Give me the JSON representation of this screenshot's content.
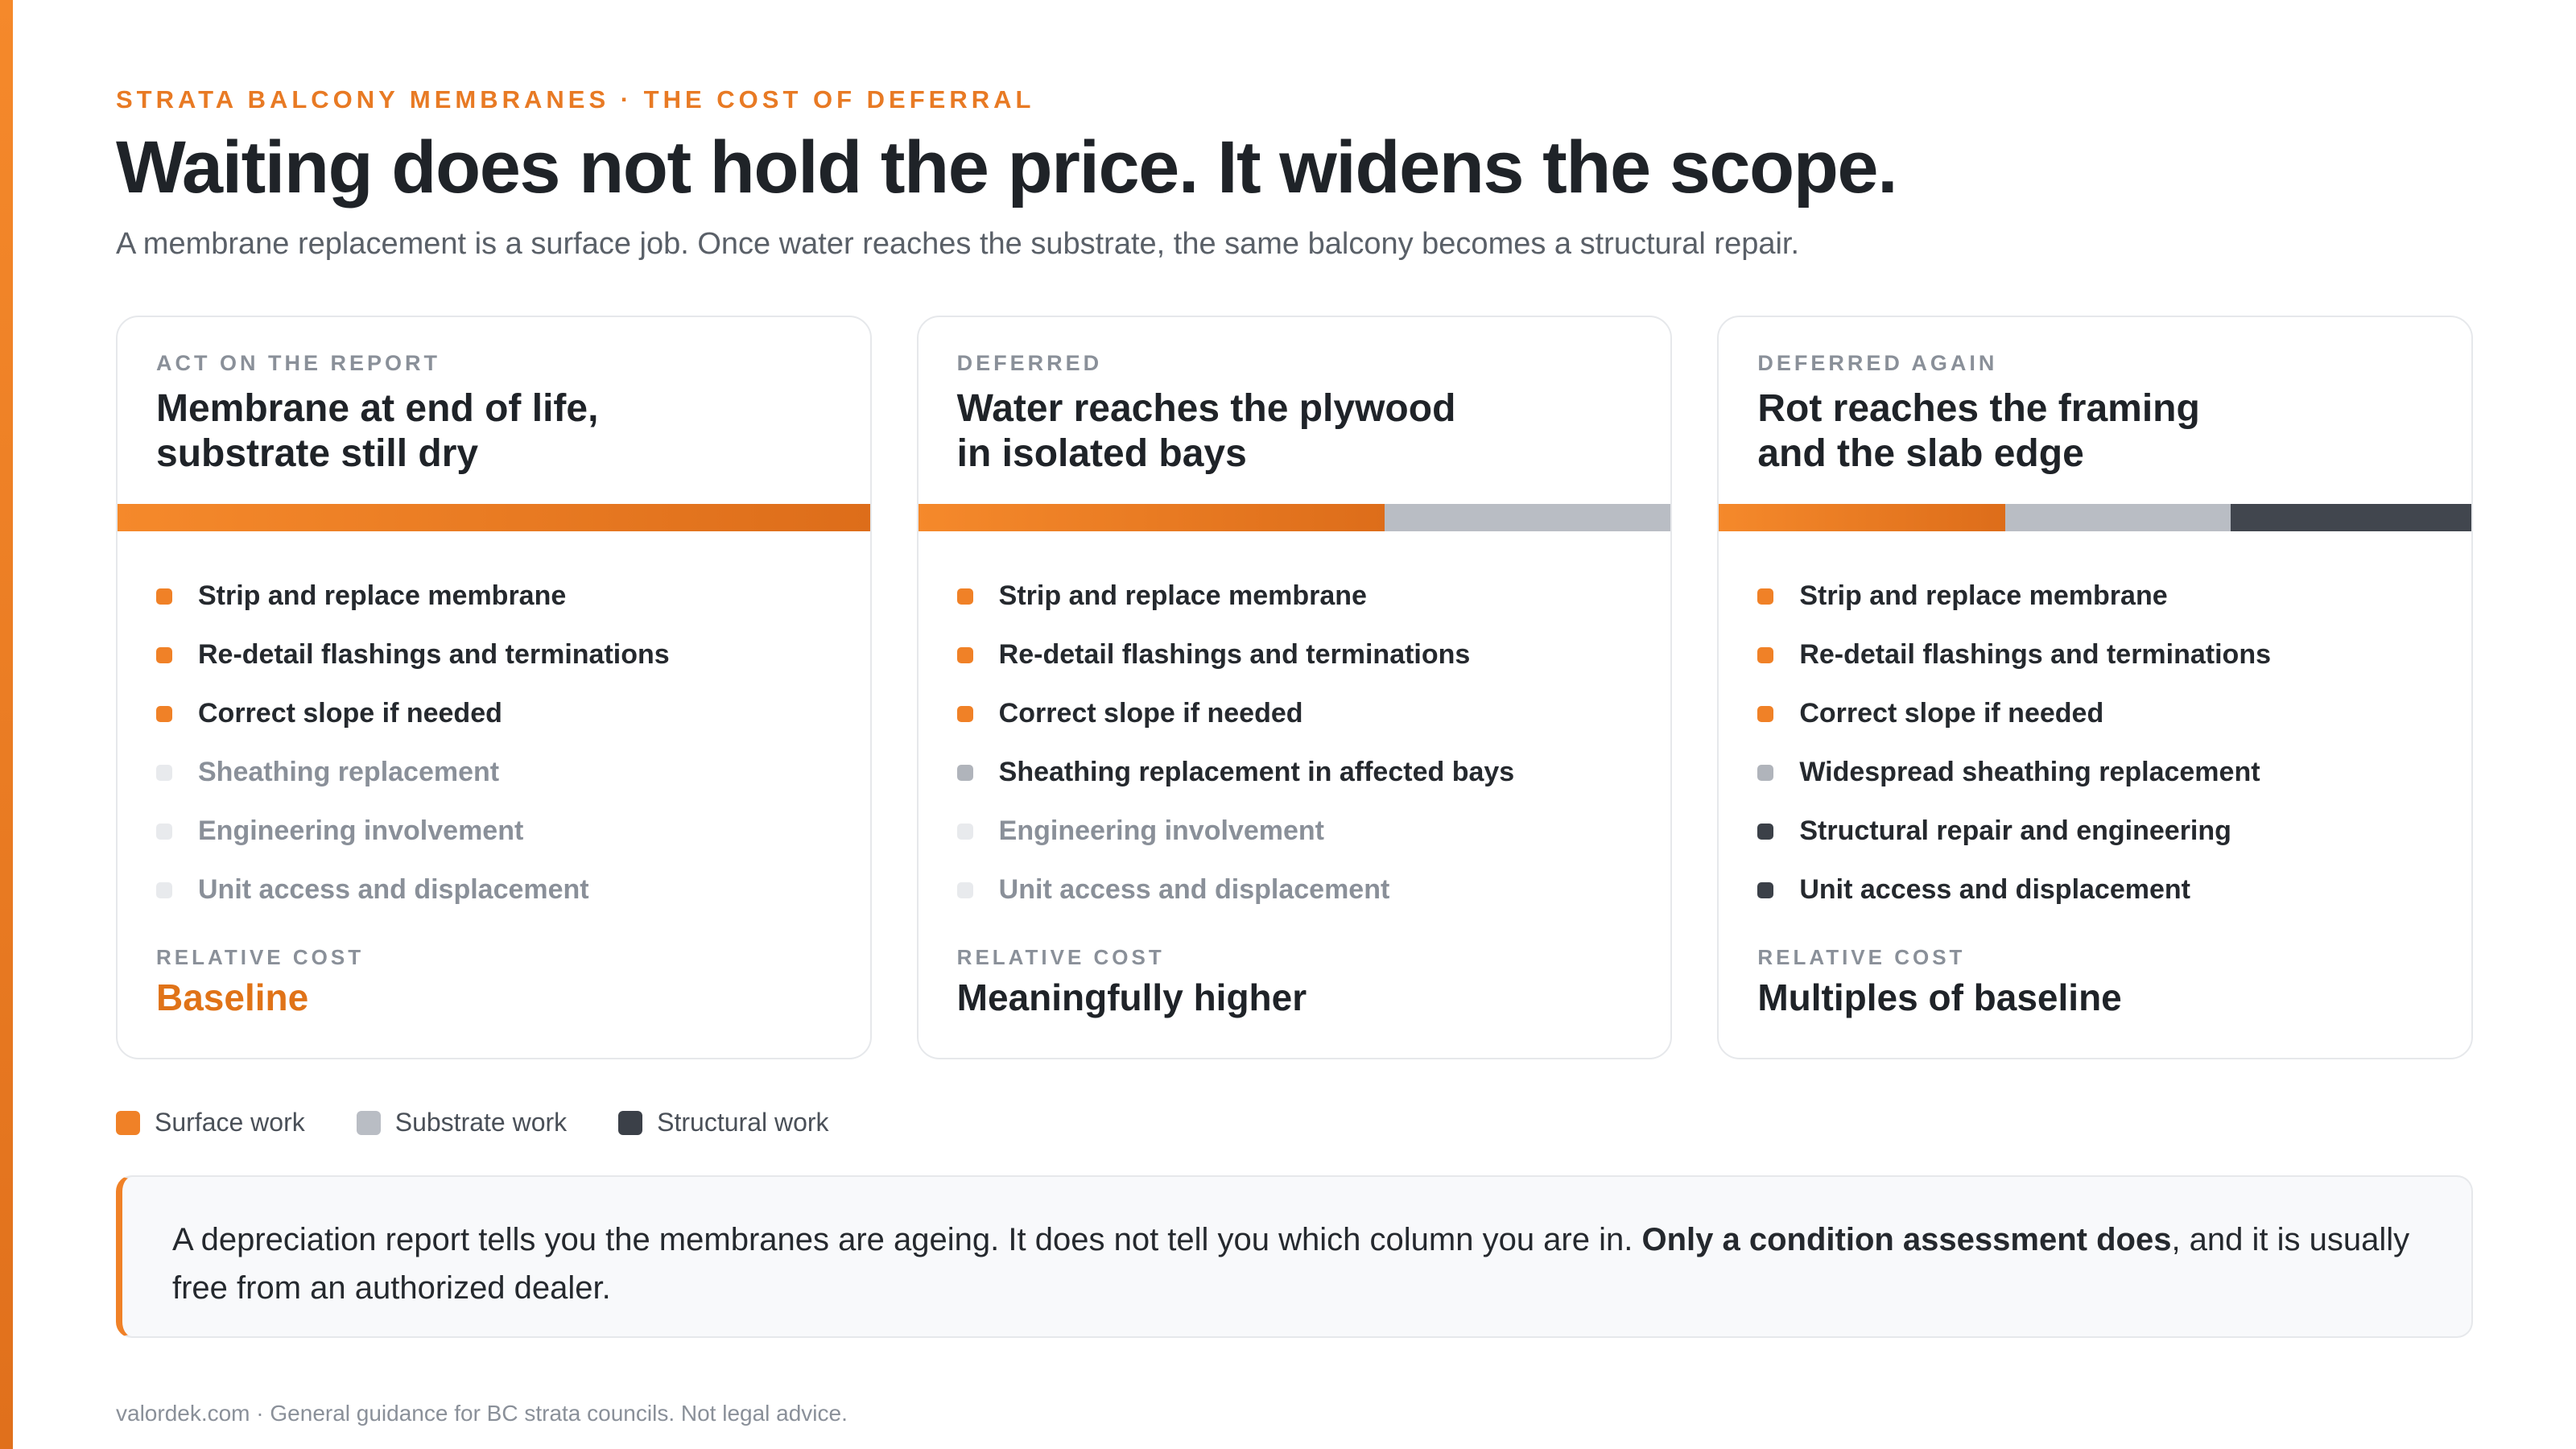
{
  "header": {
    "eyebrow": "STRATA BALCONY MEMBRANES · THE COST OF DEFERRAL",
    "title": "Waiting does not hold the price. It widens the scope.",
    "subtitle": "A membrane replacement is a surface job. Once water reaches the substrate, the same balcony becomes a structural repair."
  },
  "colors": {
    "accent": "#f08127",
    "surface": "#f08127",
    "substrate": "#b9bdc4",
    "structural": "#3b4048"
  },
  "cards": [
    {
      "tag": "ACT ON THE REPORT",
      "title_lines": [
        "Membrane at end of life,",
        "substrate still dry"
      ],
      "bar": {
        "surface": 1.0,
        "substrate": 0.0,
        "structural": 0.0
      },
      "items": [
        {
          "label": "Strip and replace membrane",
          "category": "surface",
          "active": true
        },
        {
          "label": "Re-detail flashings and terminations",
          "category": "surface",
          "active": true
        },
        {
          "label": "Correct slope if needed",
          "category": "surface",
          "active": true
        },
        {
          "label": "Sheathing replacement",
          "category": "substrate",
          "active": false
        },
        {
          "label": "Engineering involvement",
          "category": "structural",
          "active": false
        },
        {
          "label": "Unit access and displacement",
          "category": "structural",
          "active": false
        }
      ],
      "cost_label": "RELATIVE COST",
      "cost_value": "Baseline"
    },
    {
      "tag": "DEFERRED",
      "title_lines": [
        "Water reaches the plywood",
        "in isolated bays"
      ],
      "bar": {
        "surface": 0.62,
        "substrate": 0.38,
        "structural": 0.0
      },
      "items": [
        {
          "label": "Strip and replace membrane",
          "category": "surface",
          "active": true
        },
        {
          "label": "Re-detail flashings and terminations",
          "category": "surface",
          "active": true
        },
        {
          "label": "Correct slope if needed",
          "category": "surface",
          "active": true
        },
        {
          "label": "Sheathing replacement in affected bays",
          "category": "substrate",
          "active": true
        },
        {
          "label": "Engineering involvement",
          "category": "structural",
          "active": false
        },
        {
          "label": "Unit access and displacement",
          "category": "structural",
          "active": false
        }
      ],
      "cost_label": "RELATIVE COST",
      "cost_value": "Meaningfully higher"
    },
    {
      "tag": "DEFERRED AGAIN",
      "title_lines": [
        "Rot reaches the framing",
        "and the slab edge"
      ],
      "bar": {
        "surface": 0.38,
        "substrate": 0.3,
        "structural": 0.32
      },
      "items": [
        {
          "label": "Strip and replace membrane",
          "category": "surface",
          "active": true
        },
        {
          "label": "Re-detail flashings and terminations",
          "category": "surface",
          "active": true
        },
        {
          "label": "Correct slope if needed",
          "category": "surface",
          "active": true
        },
        {
          "label": "Widespread sheathing replacement",
          "category": "substrate",
          "active": true
        },
        {
          "label": "Structural repair and engineering",
          "category": "structural",
          "active": true
        },
        {
          "label": "Unit access and displacement",
          "category": "structural",
          "active": true
        }
      ],
      "cost_label": "RELATIVE COST",
      "cost_value": "Multiples of baseline"
    }
  ],
  "legend": [
    {
      "label": "Surface work",
      "category": "surface"
    },
    {
      "label": "Substrate work",
      "category": "substrate"
    },
    {
      "label": "Structural work",
      "category": "structural"
    }
  ],
  "callout": {
    "text_before": "A depreciation report tells you the membranes are ageing. It does not tell you which column you are in. ",
    "text_bold": "Only a condition assessment does",
    "text_after": ", and it is usually free from an authorized dealer."
  },
  "footer": "valordek.com · General guidance for BC strata councils. Not legal advice."
}
